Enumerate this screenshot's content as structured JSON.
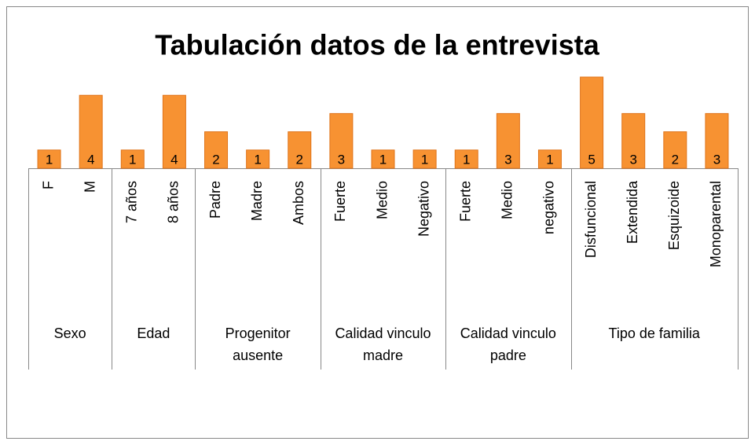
{
  "chart_data": {
    "type": "bar",
    "title": "Tabulación datos de la entrevista",
    "color": "#f79232",
    "ylim": [
      0,
      5
    ],
    "groups": [
      {
        "name": "Sexo",
        "categories": [
          "F",
          "M"
        ],
        "values": [
          1,
          4
        ]
      },
      {
        "name": "Edad",
        "categories": [
          "7 años",
          "8 años"
        ],
        "values": [
          1,
          4
        ]
      },
      {
        "name": "Progenitor ausente",
        "categories": [
          "Padre",
          "Madre",
          "Ambos"
        ],
        "values": [
          2,
          1,
          2
        ]
      },
      {
        "name": "Calidad vinculo madre",
        "categories": [
          "Fuerte",
          "Medio",
          "Negativo"
        ],
        "values": [
          3,
          1,
          1
        ]
      },
      {
        "name": "Calidad vinculo padre",
        "categories": [
          "Fuerte",
          "Medio",
          "negativo"
        ],
        "values": [
          1,
          3,
          1
        ]
      },
      {
        "name": "Tipo de familia",
        "categories": [
          "Disfuncional",
          "Extendida",
          "Esquizoide",
          "Monoparental"
        ],
        "values": [
          5,
          3,
          2,
          3
        ]
      }
    ]
  }
}
